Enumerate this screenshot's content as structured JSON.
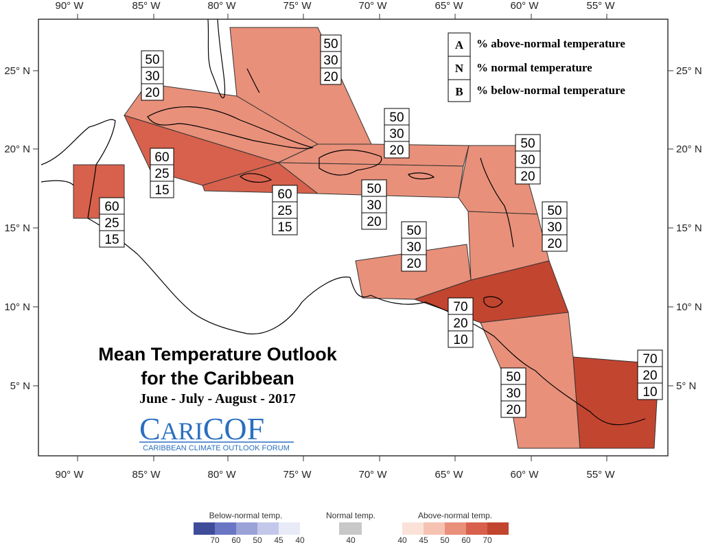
{
  "axes": {
    "x_ticks_top": [
      "90° W",
      "85° W",
      "80° W",
      "75° W",
      "70° W",
      "65° W",
      "60° W",
      "55° W"
    ],
    "x_ticks_bottom": [
      "90° W",
      "85° W",
      "80° W",
      "75° W",
      "70° W",
      "65° W",
      "60° W",
      "55° W"
    ],
    "y_ticks_left": [
      "25° N",
      "20° N",
      "15° N",
      "10° N",
      "5° N"
    ],
    "y_ticks_right": [
      "25° N",
      "20° N",
      "15° N",
      "10° N",
      "5° N"
    ]
  },
  "key": [
    {
      "letter": "A",
      "text": "% above-normal temperature"
    },
    {
      "letter": "N",
      "text": "% normal temperature"
    },
    {
      "letter": "B",
      "text": "% below-normal temperature"
    }
  ],
  "title": {
    "line1": "Mean Temperature Outlook",
    "line2": "for the Caribbean",
    "period": "June - July - August - 2017"
  },
  "brand": {
    "name_c": "C",
    "name_ari": "ARI",
    "name_cof": "COF",
    "subtitle": "CARIBBEAN CLIMATE OUTLOOK FORUM"
  },
  "regions": [
    {
      "id": "bahamas",
      "above": 50,
      "normal": 30,
      "below": 20,
      "color": "#e8907a"
    },
    {
      "id": "cuba",
      "above": 50,
      "normal": 30,
      "below": 20,
      "color": "#e8907a"
    },
    {
      "id": "cayman",
      "above": 60,
      "normal": 25,
      "below": 15,
      "color": "#d7614c"
    },
    {
      "id": "jamaica",
      "above": 60,
      "normal": 25,
      "below": 15,
      "color": "#d7614c"
    },
    {
      "id": "belize",
      "above": 60,
      "normal": 25,
      "below": 15,
      "color": "#d7614c"
    },
    {
      "id": "hispaniola_pr",
      "above": 50,
      "normal": 30,
      "below": 20,
      "color": "#e8907a"
    },
    {
      "id": "hispaniola_south",
      "above": 50,
      "normal": 30,
      "below": 20,
      "color": "#e8907a"
    },
    {
      "id": "leeward",
      "above": 50,
      "normal": 30,
      "below": 20,
      "color": "#e8907a"
    },
    {
      "id": "windward",
      "above": 50,
      "normal": 30,
      "below": 20,
      "color": "#e8907a"
    },
    {
      "id": "abc_islands",
      "above": 50,
      "normal": 30,
      "below": 20,
      "color": "#e8907a"
    },
    {
      "id": "trinidad",
      "above": 70,
      "normal": 20,
      "below": 10,
      "color": "#c24530"
    },
    {
      "id": "guyana",
      "above": 50,
      "normal": 30,
      "below": 20,
      "color": "#e8907a"
    },
    {
      "id": "suriname_fg",
      "above": 70,
      "normal": 20,
      "below": 10,
      "color": "#c24530"
    }
  ],
  "legend": {
    "below_title": "Below-normal temp.",
    "normal_title": "Normal temp.",
    "above_title": "Above-normal temp.",
    "below_colors": [
      "#3f4c9a",
      "#6a76c4",
      "#9aa2d8",
      "#c3c8ea",
      "#e8eaf8"
    ],
    "below_ticks": [
      "70",
      "60",
      "50",
      "45",
      "40"
    ],
    "normal_color": "#c8c8c8",
    "normal_ticks": [
      "40"
    ],
    "above_colors": [
      "#fbe2d9",
      "#f6c3b2",
      "#e8907a",
      "#d7614c",
      "#c24530"
    ],
    "above_ticks": [
      "40",
      "45",
      "50",
      "60",
      "70"
    ]
  }
}
